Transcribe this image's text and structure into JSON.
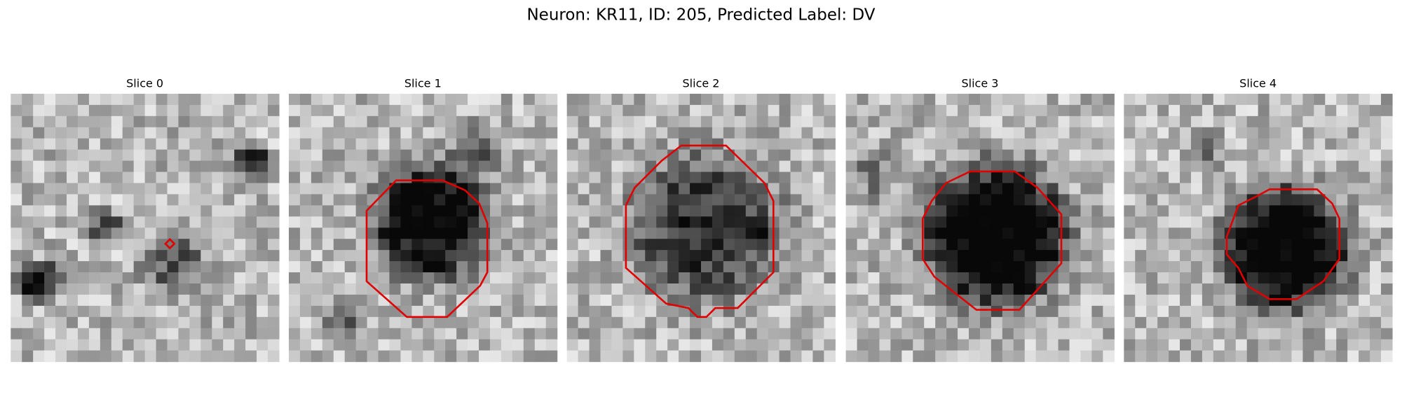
{
  "title": "Neuron: KR11, ID: 205, Predicted Label: DV",
  "panels": [
    {
      "title": "Slice 0"
    },
    {
      "title": "Slice 1"
    },
    {
      "title": "Slice 2"
    },
    {
      "title": "Slice 3"
    },
    {
      "title": "Slice 4"
    }
  ]
}
